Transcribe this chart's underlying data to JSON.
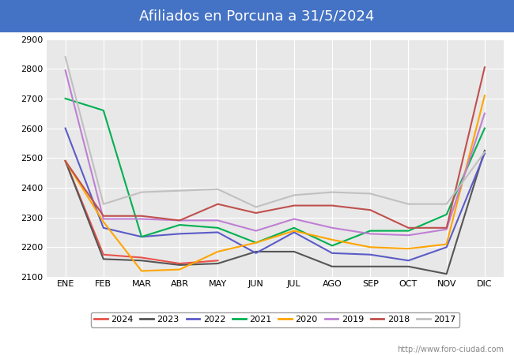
{
  "title": "Afiliados en Porcuna a 31/5/2024",
  "title_bg_color": "#4472c4",
  "title_text_color": "white",
  "months": [
    "ENE",
    "FEB",
    "MAR",
    "ABR",
    "MAY",
    "JUN",
    "JUL",
    "AGO",
    "SEP",
    "OCT",
    "NOV",
    "DIC"
  ],
  "ylim": [
    2100,
    2900
  ],
  "yticks": [
    2100,
    2200,
    2300,
    2400,
    2500,
    2600,
    2700,
    2800,
    2900
  ],
  "fig_bg_color": "#ffffff",
  "plot_bg_color": "#e8e8e8",
  "watermark": "http://www.foro-ciudad.com",
  "series": [
    {
      "label": "2024",
      "color": "#e8534a",
      "linewidth": 1.5,
      "data": [
        2490,
        2175,
        2165,
        2145,
        2155,
        null,
        null,
        null,
        null,
        null,
        null,
        null
      ]
    },
    {
      "label": "2023",
      "color": "#555555",
      "linewidth": 1.5,
      "data": [
        2490,
        2160,
        2155,
        2140,
        2145,
        2185,
        2185,
        2135,
        2135,
        2135,
        2110,
        2525
      ]
    },
    {
      "label": "2022",
      "color": "#5b5bc8",
      "linewidth": 1.5,
      "data": [
        2600,
        2265,
        2235,
        2245,
        2250,
        2180,
        2250,
        2180,
        2175,
        2155,
        2200,
        2515
      ]
    },
    {
      "label": "2021",
      "color": "#00b050",
      "linewidth": 1.5,
      "data": [
        2700,
        2660,
        2235,
        2275,
        2265,
        2215,
        2265,
        2205,
        2255,
        2255,
        2310,
        2600
      ]
    },
    {
      "label": "2020",
      "color": "#ffa500",
      "linewidth": 1.5,
      "data": [
        2490,
        2285,
        2120,
        2125,
        2185,
        2215,
        2255,
        2225,
        2200,
        2195,
        2210,
        2710
      ]
    },
    {
      "label": "2019",
      "color": "#bf7fd4",
      "linewidth": 1.5,
      "data": [
        2795,
        2295,
        2295,
        2290,
        2290,
        2255,
        2295,
        2265,
        2245,
        2240,
        2260,
        2650
      ]
    },
    {
      "label": "2018",
      "color": "#c0504d",
      "linewidth": 1.5,
      "data": [
        2490,
        2305,
        2305,
        2290,
        2345,
        2315,
        2340,
        2340,
        2325,
        2265,
        2265,
        2805
      ]
    },
    {
      "label": "2017",
      "color": "#c0c0c0",
      "linewidth": 1.5,
      "data": [
        2840,
        2345,
        2385,
        2390,
        2395,
        2335,
        2375,
        2385,
        2380,
        2345,
        2345,
        2520
      ]
    }
  ]
}
